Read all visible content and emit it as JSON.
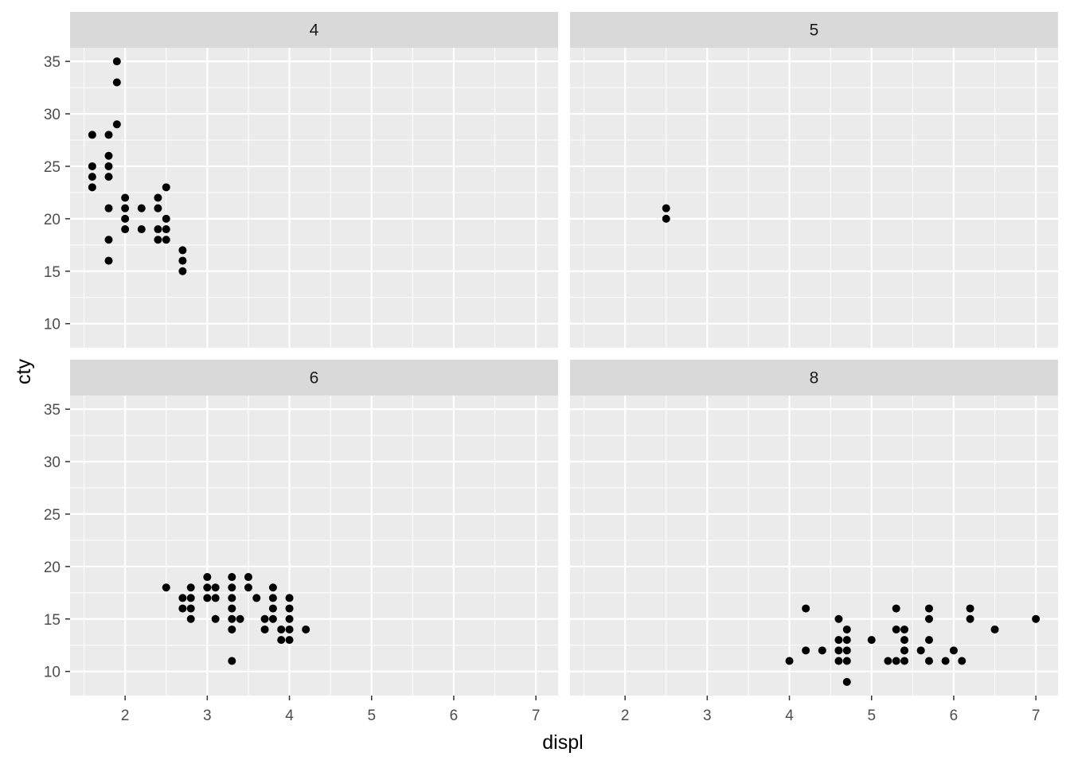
{
  "chart_data": {
    "type": "scatter",
    "facet_variable": "cyl",
    "xlabel": "displ",
    "ylabel": "cty",
    "xlim": [
      1.33,
      7.27
    ],
    "ylim": [
      7.7,
      36.3
    ],
    "x_ticks": [
      2,
      3,
      4,
      5,
      6,
      7
    ],
    "y_ticks": [
      10,
      15,
      20,
      25,
      30,
      35
    ],
    "grid": true,
    "panel_background": "#EBEBEB",
    "strip_background": "#D9D9D9",
    "point_color": "#000000",
    "panels": [
      {
        "label": "4",
        "points": [
          [
            1.6,
            28
          ],
          [
            1.6,
            25
          ],
          [
            1.6,
            24
          ],
          [
            1.6,
            23
          ],
          [
            1.8,
            28
          ],
          [
            1.8,
            26
          ],
          [
            1.8,
            25
          ],
          [
            1.8,
            24
          ],
          [
            1.8,
            21
          ],
          [
            1.8,
            18
          ],
          [
            1.8,
            16
          ],
          [
            1.9,
            35
          ],
          [
            1.9,
            33
          ],
          [
            1.9,
            29
          ],
          [
            2.0,
            22
          ],
          [
            2.0,
            21
          ],
          [
            2.0,
            20
          ],
          [
            2.0,
            19
          ],
          [
            2.2,
            21
          ],
          [
            2.2,
            19
          ],
          [
            2.4,
            22
          ],
          [
            2.4,
            21
          ],
          [
            2.4,
            19
          ],
          [
            2.4,
            18
          ],
          [
            2.5,
            23
          ],
          [
            2.5,
            20
          ],
          [
            2.5,
            19
          ],
          [
            2.5,
            18
          ],
          [
            2.7,
            17
          ],
          [
            2.7,
            16
          ],
          [
            2.7,
            15
          ]
        ]
      },
      {
        "label": "5",
        "points": [
          [
            2.5,
            21
          ],
          [
            2.5,
            20
          ]
        ]
      },
      {
        "label": "6",
        "points": [
          [
            2.5,
            18
          ],
          [
            2.7,
            17
          ],
          [
            2.7,
            16
          ],
          [
            2.8,
            18
          ],
          [
            2.8,
            17
          ],
          [
            2.8,
            16
          ],
          [
            2.8,
            15
          ],
          [
            3.0,
            19
          ],
          [
            3.0,
            18
          ],
          [
            3.0,
            17
          ],
          [
            3.1,
            18
          ],
          [
            3.1,
            17
          ],
          [
            3.1,
            15
          ],
          [
            3.3,
            19
          ],
          [
            3.3,
            18
          ],
          [
            3.3,
            17
          ],
          [
            3.3,
            16
          ],
          [
            3.3,
            15
          ],
          [
            3.3,
            14
          ],
          [
            3.3,
            11
          ],
          [
            3.4,
            15
          ],
          [
            3.5,
            19
          ],
          [
            3.5,
            18
          ],
          [
            3.6,
            17
          ],
          [
            3.7,
            15
          ],
          [
            3.7,
            14
          ],
          [
            3.8,
            18
          ],
          [
            3.8,
            17
          ],
          [
            3.8,
            16
          ],
          [
            3.8,
            15
          ],
          [
            3.9,
            14
          ],
          [
            3.9,
            13
          ],
          [
            4.0,
            17
          ],
          [
            4.0,
            16
          ],
          [
            4.0,
            15
          ],
          [
            4.0,
            14
          ],
          [
            4.0,
            13
          ],
          [
            4.2,
            14
          ]
        ]
      },
      {
        "label": "8",
        "points": [
          [
            4.0,
            11
          ],
          [
            4.2,
            16
          ],
          [
            4.2,
            12
          ],
          [
            4.4,
            12
          ],
          [
            4.6,
            15
          ],
          [
            4.6,
            13
          ],
          [
            4.6,
            12
          ],
          [
            4.6,
            11
          ],
          [
            4.7,
            14
          ],
          [
            4.7,
            13
          ],
          [
            4.7,
            12
          ],
          [
            4.7,
            11
          ],
          [
            4.7,
            9
          ],
          [
            5.0,
            13
          ],
          [
            5.2,
            11
          ],
          [
            5.3,
            16
          ],
          [
            5.3,
            14
          ],
          [
            5.3,
            11
          ],
          [
            5.4,
            14
          ],
          [
            5.4,
            13
          ],
          [
            5.4,
            12
          ],
          [
            5.4,
            11
          ],
          [
            5.6,
            12
          ],
          [
            5.7,
            16
          ],
          [
            5.7,
            15
          ],
          [
            5.7,
            13
          ],
          [
            5.7,
            11
          ],
          [
            5.9,
            11
          ],
          [
            6.0,
            12
          ],
          [
            6.1,
            11
          ],
          [
            6.2,
            16
          ],
          [
            6.2,
            15
          ],
          [
            6.5,
            14
          ],
          [
            7.0,
            15
          ]
        ]
      }
    ]
  }
}
